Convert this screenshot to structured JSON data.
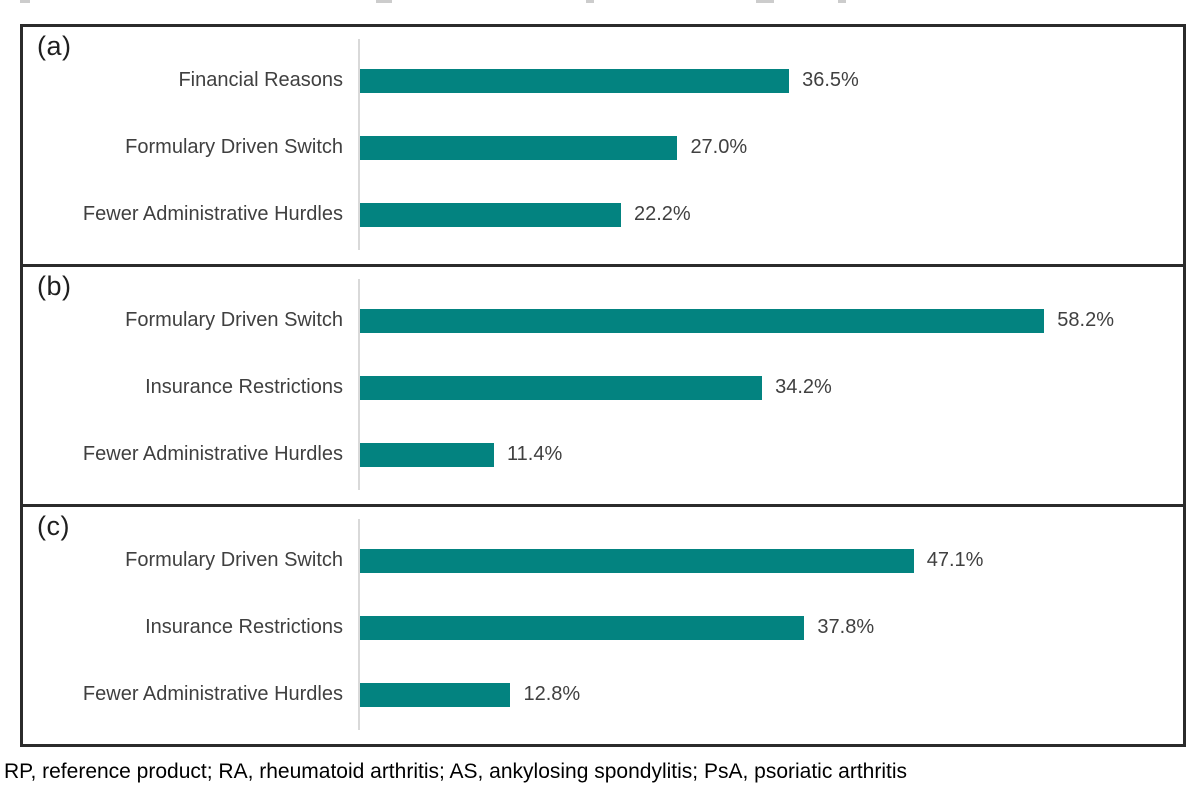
{
  "colors": {
    "bar": "#038380",
    "panel_border": "#2b2b2b",
    "axis_line": "#d9d9d9",
    "category_text": "#404040",
    "value_text": "#404040",
    "footnote_text": "#000000"
  },
  "top_edge_fragments": [
    {
      "x": 20,
      "w": 10
    },
    {
      "x": 376,
      "w": 16
    },
    {
      "x": 586,
      "w": 8
    },
    {
      "x": 756,
      "w": 18
    },
    {
      "x": 838,
      "w": 8
    }
  ],
  "chart_data": [
    {
      "type": "bar",
      "orientation": "horizontal",
      "panel_label": "(a)",
      "categories": [
        "Financial Reasons",
        "Formulary Driven Switch",
        "Fewer Administrative Hurdles"
      ],
      "values": [
        36.5,
        27.0,
        22.2
      ],
      "data_labels": [
        "36.5%",
        "27.0%",
        "22.2%"
      ],
      "xlim": [
        0,
        70
      ],
      "grid": false,
      "axis_ticks_visible": false,
      "bar_color": "#038380"
    },
    {
      "type": "bar",
      "orientation": "horizontal",
      "panel_label": "(b)",
      "categories": [
        "Formulary Driven Switch",
        "Insurance Restrictions",
        "Fewer Administrative Hurdles"
      ],
      "values": [
        58.2,
        34.2,
        11.4
      ],
      "data_labels": [
        "58.2%",
        "34.2%",
        "11.4%"
      ],
      "xlim": [
        0,
        70
      ],
      "grid": false,
      "axis_ticks_visible": false,
      "bar_color": "#038380"
    },
    {
      "type": "bar",
      "orientation": "horizontal",
      "panel_label": "(c)",
      "categories": [
        "Formulary Driven Switch",
        "Insurance Restrictions",
        "Fewer Administrative Hurdles"
      ],
      "values": [
        47.1,
        37.8,
        12.8
      ],
      "data_labels": [
        "47.1%",
        "37.8%",
        "12.8%"
      ],
      "xlim": [
        0,
        70
      ],
      "grid": false,
      "axis_ticks_visible": false,
      "bar_color": "#038380"
    }
  ],
  "footnote": "RP, reference product; RA, rheumatoid arthritis; AS, ankylosing spondylitis; PsA, psoriatic arthritis"
}
